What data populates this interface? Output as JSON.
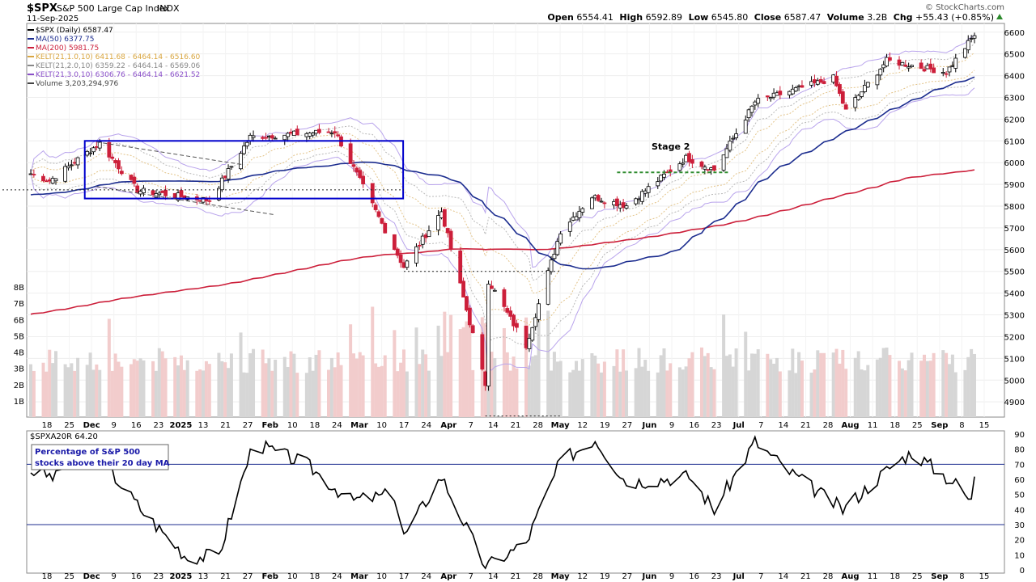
{
  "header": {
    "symbol": "$SPX",
    "name": "S&P 500 Large Cap Index",
    "exchange": "INDX",
    "date": "11-Sep-2025",
    "open_label": "Open",
    "open": "6554.41",
    "high_label": "High",
    "high": "6592.89",
    "low_label": "Low",
    "low": "6545.80",
    "close_label": "Close",
    "close": "6587.47",
    "volume_label": "Volume",
    "volume": "3.2B",
    "chg_label": "Chg",
    "chg": "+55.43 (+0.85%)",
    "watermark": "© StockCharts.com"
  },
  "legend": [
    {
      "text": "$SPX (Daily) 6587.47",
      "color": "#000000"
    },
    {
      "text": "MA(50) 6377.75",
      "color": "#1c2d8f"
    },
    {
      "text": "MA(200) 5981.75",
      "color": "#cc1f3a"
    },
    {
      "text": "KELT(21,1.0,10) 6411.68 - 6464.14 - 6516.60",
      "color": "#d9a640"
    },
    {
      "text": "KELT(21,2.0,10) 6359.22 - 6464.14 - 6569.06",
      "color": "#888888"
    },
    {
      "text": "KELT(21,3.0,10) 6306.76 - 6464.14 - 6621.52",
      "color": "#8a4fc9"
    },
    {
      "text": "Volume 3,203,294,976",
      "color": "#444444"
    }
  ],
  "annotations": {
    "stage2": "Stage 2",
    "lower_legend_title": "$SPXA20R 64.20",
    "lower_box_text_line1": "Percentage of S&P 500",
    "lower_box_text_line2": "stocks above their 20 day MA"
  },
  "colors": {
    "ma50": "#1c2d8f",
    "ma200": "#cc1f3a",
    "kelt1": "#e3c48a",
    "kelt2": "#b8b8b8",
    "kelt3": "#b9a4ec",
    "bull": "#000000",
    "bear": "#cc1f3a",
    "box": "#0000cc",
    "stage2_line": "#2e8b2e"
  },
  "chart_data": [
    {
      "type": "candlestick",
      "title": "$SPX S&P 500 Large Cap Index",
      "y_ticks": [
        "6600",
        "6500",
        "6400",
        "6300",
        "6200",
        "6100",
        "6000",
        "5900",
        "5800",
        "5700",
        "5600",
        "5500",
        "5400",
        "5300",
        "5200",
        "5100",
        "5000",
        "4900"
      ],
      "ylim": [
        4830,
        6640
      ],
      "x_tick_labels": [
        "18",
        "25",
        "Dec",
        "9",
        "16",
        "23",
        "2025",
        "13",
        "21",
        "27",
        "Feb",
        "10",
        "18",
        "24",
        "Mar",
        "10",
        "17",
        "24",
        "Apr",
        "7",
        "14",
        "21",
        "28",
        "May",
        "12",
        "19",
        "27",
        "Jun",
        "9",
        "16",
        "23",
        "Jul",
        "7",
        "14",
        "21",
        "28",
        "Aug",
        "11",
        "18",
        "25",
        "Sep",
        "8",
        "15"
      ],
      "approx_close_path": [
        {
          "date": "2024-11-14",
          "close": 5949
        },
        {
          "date": "2024-11-20",
          "close": 5917
        },
        {
          "date": "2024-12-06",
          "close": 6090
        },
        {
          "date": "2024-12-18",
          "close": 5872
        },
        {
          "date": "2025-01-10",
          "close": 5827
        },
        {
          "date": "2025-01-23",
          "close": 6118
        },
        {
          "date": "2025-02-19",
          "close": 6144
        },
        {
          "date": "2025-03-13",
          "close": 5521
        },
        {
          "date": "2025-03-25",
          "close": 5776
        },
        {
          "date": "2025-04-08",
          "close": 4982
        },
        {
          "date": "2025-04-09",
          "close": 5456
        },
        {
          "date": "2025-04-21",
          "close": 5158
        },
        {
          "date": "2025-05-02",
          "close": 5686
        },
        {
          "date": "2025-05-12",
          "close": 5844
        },
        {
          "date": "2025-05-23",
          "close": 5802
        },
        {
          "date": "2025-06-11",
          "close": 6022
        },
        {
          "date": "2025-06-20",
          "close": 5967
        },
        {
          "date": "2025-07-03",
          "close": 6279
        },
        {
          "date": "2025-07-28",
          "close": 6389
        },
        {
          "date": "2025-08-01",
          "close": 6238
        },
        {
          "date": "2025-08-14",
          "close": 6469
        },
        {
          "date": "2025-09-02",
          "close": 6416
        },
        {
          "date": "2025-09-11",
          "close": 6587
        }
      ]
    },
    {
      "type": "bar",
      "title": "Volume",
      "y_ticks": [
        "8B",
        "7B",
        "6B",
        "5B",
        "4B",
        "3B",
        "2B",
        "1B"
      ],
      "ylim": [
        0,
        8.5
      ]
    },
    {
      "type": "line",
      "title": "$SPXA20R",
      "ylim": [
        0,
        90
      ],
      "y_ticks": [
        "90",
        "80",
        "70",
        "60",
        "50",
        "40",
        "30",
        "20",
        "10",
        "0"
      ],
      "reference_lines": [
        70,
        30
      ],
      "last_value": 64.2,
      "approx_path": [
        {
          "date": "2024-11-14",
          "value": 66
        },
        {
          "date": "2024-11-22",
          "value": 61
        },
        {
          "date": "2024-12-02",
          "value": 84
        },
        {
          "date": "2024-12-20",
          "value": 38
        },
        {
          "date": "2025-01-03",
          "value": 8
        },
        {
          "date": "2025-01-13",
          "value": 10
        },
        {
          "date": "2025-01-24",
          "value": 84
        },
        {
          "date": "2025-02-10",
          "value": 70
        },
        {
          "date": "2025-02-24",
          "value": 46
        },
        {
          "date": "2025-03-10",
          "value": 50
        },
        {
          "date": "2025-03-13",
          "value": 22
        },
        {
          "date": "2025-03-25",
          "value": 62
        },
        {
          "date": "2025-04-08",
          "value": 2
        },
        {
          "date": "2025-04-21",
          "value": 18
        },
        {
          "date": "2025-05-02",
          "value": 72
        },
        {
          "date": "2025-05-13",
          "value": 87
        },
        {
          "date": "2025-05-23",
          "value": 58
        },
        {
          "date": "2025-06-12",
          "value": 62
        },
        {
          "date": "2025-06-20",
          "value": 40
        },
        {
          "date": "2025-07-03",
          "value": 85
        },
        {
          "date": "2025-07-14",
          "value": 65
        },
        {
          "date": "2025-07-31",
          "value": 40
        },
        {
          "date": "2025-08-15",
          "value": 68
        },
        {
          "date": "2025-08-22",
          "value": 78
        },
        {
          "date": "2025-09-05",
          "value": 57
        },
        {
          "date": "2025-09-10",
          "value": 45
        },
        {
          "date": "2025-09-11",
          "value": 64
        }
      ]
    }
  ]
}
